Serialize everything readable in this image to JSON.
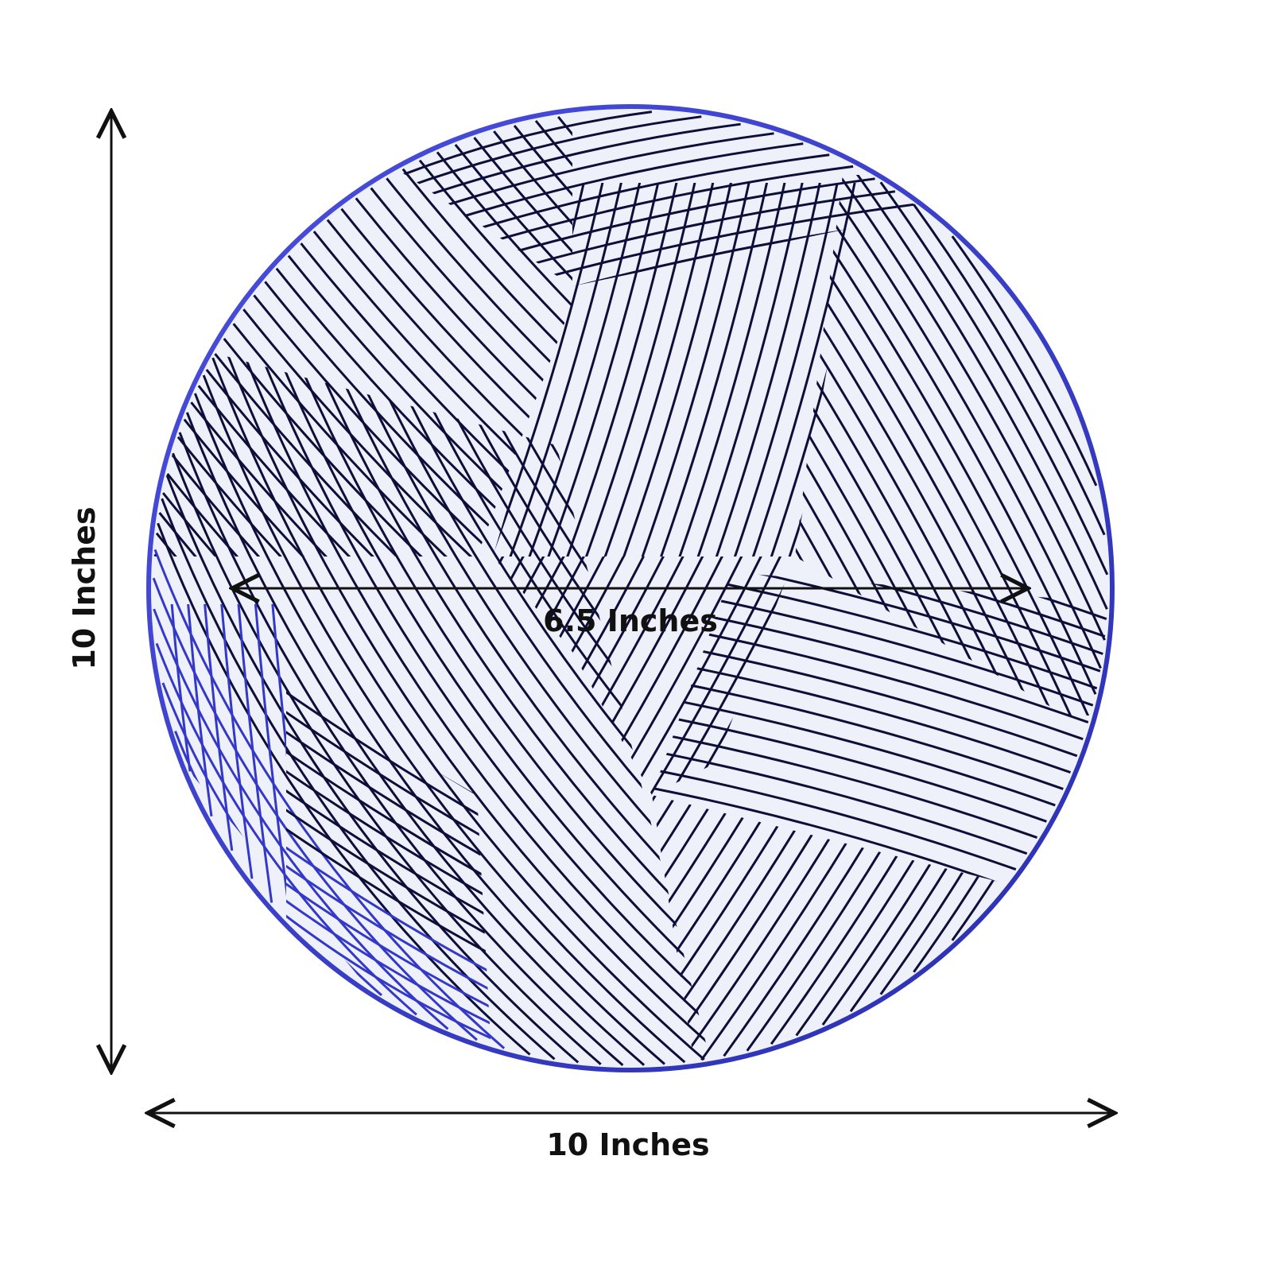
{
  "dimensions": {
    "height_label": "10 Inches",
    "width_label": "10 Inches",
    "inner_label": "6.5 Inches"
  },
  "colors": {
    "plate_fill": "#eef0fa",
    "rim": "#3a3fd6",
    "line_dark": "#0d0f3a",
    "line_blue": "#3438c8",
    "arrow": "#111111"
  }
}
